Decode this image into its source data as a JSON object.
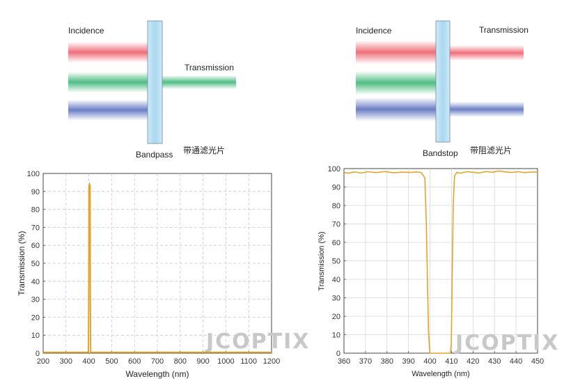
{
  "colors": {
    "curve": "#e0a52a",
    "red": "#ef6f7a",
    "green": "#4fbd84",
    "blue": "#6b7fc4",
    "glass": "#b9ddf2"
  },
  "diagrams": {
    "bandpass": {
      "incidence": "Incidence",
      "transmission": "Transmission",
      "name": "Bandpass",
      "cn": "带通滤光片",
      "transmitted": [
        "green"
      ]
    },
    "bandstop": {
      "incidence": "Incidence",
      "transmission": "Transmission",
      "name": "Bandstop",
      "cn": "带阻滤光片",
      "transmitted": [
        "red",
        "blue"
      ]
    }
  },
  "watermark": "JCOPTIX",
  "chart_data": [
    {
      "type": "line",
      "xlabel": "Wavelength (nm)",
      "ylabel": "Transmission (%)",
      "xlim": [
        200,
        1200
      ],
      "ylim": [
        0,
        100
      ],
      "xticks": [
        200,
        300,
        400,
        500,
        600,
        700,
        800,
        900,
        1000,
        1100,
        1200
      ],
      "yticks": [
        0,
        10,
        20,
        30,
        40,
        50,
        60,
        70,
        80,
        90,
        100
      ],
      "grid": "dashed",
      "x": [
        200,
        398,
        399.5,
        400.5,
        403,
        405.5,
        406.5,
        408,
        1200
      ],
      "y": [
        0.5,
        0.5,
        30,
        93,
        94,
        93,
        30,
        0.5,
        0.5
      ]
    },
    {
      "type": "line",
      "xlabel": "Wavelength (nm)",
      "ylabel": "Transmission (%)",
      "xlim": [
        360,
        450
      ],
      "ylim": [
        0,
        100
      ],
      "xticks": [
        360,
        370,
        380,
        390,
        400,
        410,
        420,
        430,
        440,
        450
      ],
      "yticks": [
        0,
        10,
        20,
        30,
        40,
        50,
        60,
        70,
        80,
        90,
        100
      ],
      "grid": "solid",
      "x": [
        360,
        362,
        365,
        368,
        371,
        375,
        379,
        383,
        387,
        391,
        394,
        396,
        397.6,
        398.3,
        398.8,
        399.3,
        399.8,
        400,
        409.5,
        409.9,
        410.3,
        410.8,
        411.4,
        412.5,
        414,
        417,
        420,
        423,
        426,
        429,
        432,
        435,
        438,
        441,
        444,
        447,
        450
      ],
      "y": [
        98,
        97.5,
        98.2,
        97.6,
        98.3,
        97.8,
        98.4,
        97.7,
        98.1,
        97.9,
        98.2,
        97.8,
        95,
        70,
        40,
        12,
        2,
        0,
        0,
        5,
        40,
        80,
        96,
        98,
        97.5,
        98.3,
        98,
        97.6,
        98.4,
        98,
        98.7,
        98.2,
        97.9,
        98.3,
        97.8,
        98.1,
        98.2
      ]
    }
  ]
}
